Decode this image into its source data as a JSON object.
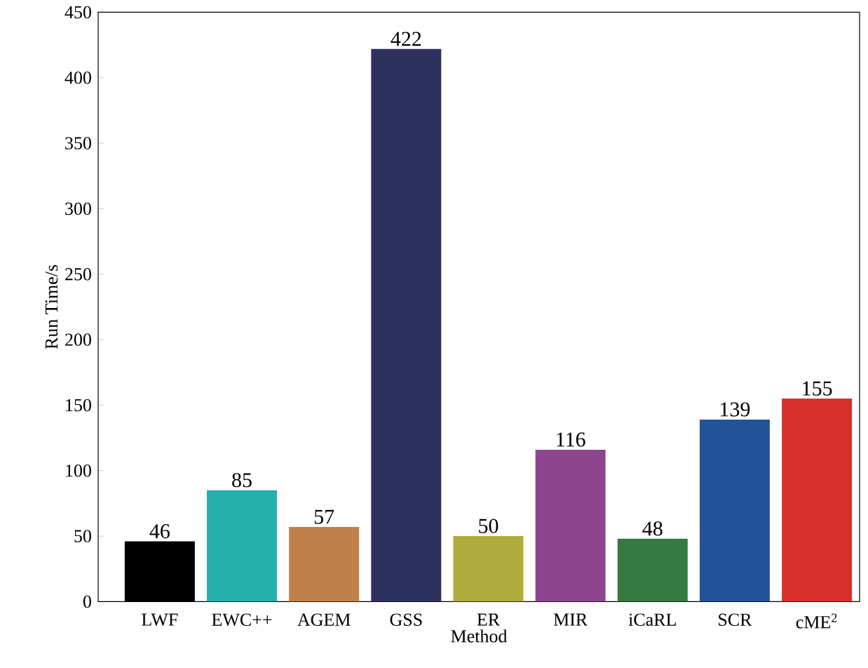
{
  "chart_data": {
    "type": "bar",
    "xlabel": "Method",
    "ylabel": "Run Time/s",
    "categories": [
      "LWF",
      "EWC++",
      "AGEM",
      "GSS",
      "ER",
      "MIR",
      "iCaRL",
      "SCR",
      "cME$^{2}$"
    ],
    "values": [
      46,
      85,
      57,
      422,
      50,
      116,
      48,
      139,
      155
    ],
    "colors": [
      "#000000",
      "#26b0ab",
      "#c0804a",
      "#2e3160",
      "#b0ac3c",
      "#8e4590",
      "#357a40",
      "#22529a",
      "#d9302e"
    ],
    "ylim": [
      0,
      450
    ],
    "yticks": [
      0,
      50,
      100,
      150,
      200,
      250,
      300,
      350,
      400,
      450
    ],
    "data_labels": true,
    "grid": false
  }
}
